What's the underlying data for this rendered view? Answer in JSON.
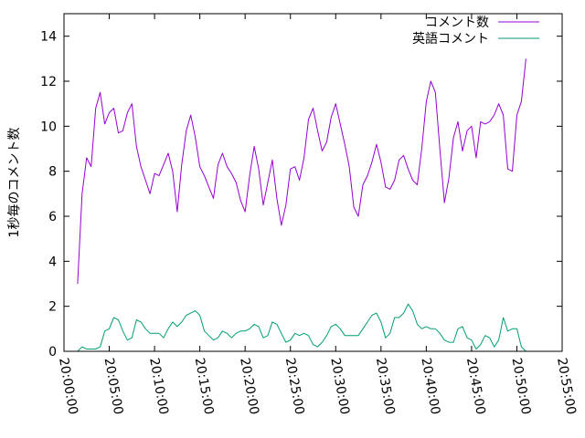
{
  "chart_data": {
    "type": "line",
    "title": "",
    "xlabel": "",
    "ylabel": "1秒毎のコメント数",
    "xlim": [
      "20:00:00",
      "20:55:00"
    ],
    "ylim": [
      0,
      15
    ],
    "x_ticks": [
      "20:00:00",
      "20:05:00",
      "20:10:00",
      "20:15:00",
      "20:20:00",
      "20:25:00",
      "20:30:00",
      "20:35:00",
      "20:40:00",
      "20:45:00",
      "20:50:00",
      "20:55:00"
    ],
    "y_ticks": [
      0,
      2,
      4,
      6,
      8,
      10,
      12,
      14
    ],
    "grid": false,
    "legend_position": "top-right",
    "series": [
      {
        "name": "コメント数",
        "color": "#9400d3",
        "points": [
          [
            "20:01:30",
            3.0
          ],
          [
            "20:02:00",
            7.0
          ],
          [
            "20:02:30",
            8.6
          ],
          [
            "20:03:00",
            8.2
          ],
          [
            "20:03:30",
            10.8
          ],
          [
            "20:04:00",
            11.5
          ],
          [
            "20:04:30",
            10.1
          ],
          [
            "20:05:00",
            10.6
          ],
          [
            "20:05:30",
            10.8
          ],
          [
            "20:06:00",
            9.7
          ],
          [
            "20:06:30",
            9.8
          ],
          [
            "20:07:00",
            10.6
          ],
          [
            "20:07:30",
            11.0
          ],
          [
            "20:08:00",
            9.1
          ],
          [
            "20:08:30",
            8.2
          ],
          [
            "20:09:00",
            7.6
          ],
          [
            "20:09:30",
            7.0
          ],
          [
            "20:10:00",
            7.9
          ],
          [
            "20:10:30",
            7.8
          ],
          [
            "20:11:00",
            8.3
          ],
          [
            "20:11:30",
            8.8
          ],
          [
            "20:12:00",
            8.0
          ],
          [
            "20:12:30",
            6.2
          ],
          [
            "20:13:00",
            8.3
          ],
          [
            "20:13:30",
            9.8
          ],
          [
            "20:14:00",
            10.5
          ],
          [
            "20:14:30",
            9.5
          ],
          [
            "20:15:00",
            8.2
          ],
          [
            "20:15:30",
            7.8
          ],
          [
            "20:16:00",
            7.3
          ],
          [
            "20:16:30",
            6.8
          ],
          [
            "20:17:00",
            8.3
          ],
          [
            "20:17:30",
            8.8
          ],
          [
            "20:18:00",
            8.2
          ],
          [
            "20:18:30",
            7.9
          ],
          [
            "20:19:00",
            7.5
          ],
          [
            "20:19:30",
            6.7
          ],
          [
            "20:20:00",
            6.2
          ],
          [
            "20:20:30",
            7.8
          ],
          [
            "20:21:00",
            9.1
          ],
          [
            "20:21:30",
            8.1
          ],
          [
            "20:22:00",
            6.5
          ],
          [
            "20:22:30",
            7.5
          ],
          [
            "20:23:00",
            8.5
          ],
          [
            "20:23:30",
            6.8
          ],
          [
            "20:24:00",
            5.6
          ],
          [
            "20:24:30",
            6.5
          ],
          [
            "20:25:00",
            8.1
          ],
          [
            "20:25:30",
            8.2
          ],
          [
            "20:26:00",
            7.6
          ],
          [
            "20:26:30",
            8.6
          ],
          [
            "20:27:00",
            10.3
          ],
          [
            "20:27:30",
            10.8
          ],
          [
            "20:28:00",
            9.8
          ],
          [
            "20:28:30",
            8.9
          ],
          [
            "20:29:00",
            9.3
          ],
          [
            "20:29:30",
            10.4
          ],
          [
            "20:30:00",
            11.0
          ],
          [
            "20:30:30",
            10.1
          ],
          [
            "20:31:00",
            9.2
          ],
          [
            "20:31:30",
            8.2
          ],
          [
            "20:32:00",
            6.4
          ],
          [
            "20:32:30",
            6.0
          ],
          [
            "20:33:00",
            7.4
          ],
          [
            "20:33:30",
            7.8
          ],
          [
            "20:34:00",
            8.4
          ],
          [
            "20:34:30",
            9.2
          ],
          [
            "20:35:00",
            8.4
          ],
          [
            "20:35:30",
            7.3
          ],
          [
            "20:36:00",
            7.2
          ],
          [
            "20:36:30",
            7.6
          ],
          [
            "20:37:00",
            8.5
          ],
          [
            "20:37:30",
            8.7
          ],
          [
            "20:38:00",
            8.1
          ],
          [
            "20:38:30",
            7.6
          ],
          [
            "20:39:00",
            7.4
          ],
          [
            "20:39:30",
            9.0
          ],
          [
            "20:40:00",
            11.1
          ],
          [
            "20:40:30",
            12.0
          ],
          [
            "20:41:00",
            11.5
          ],
          [
            "20:41:30",
            9.0
          ],
          [
            "20:42:00",
            6.6
          ],
          [
            "20:42:30",
            7.7
          ],
          [
            "20:43:00",
            9.5
          ],
          [
            "20:43:30",
            10.2
          ],
          [
            "20:44:00",
            8.9
          ],
          [
            "20:44:30",
            9.8
          ],
          [
            "20:45:00",
            10.0
          ],
          [
            "20:45:30",
            8.6
          ],
          [
            "20:46:00",
            10.2
          ],
          [
            "20:46:30",
            10.1
          ],
          [
            "20:47:00",
            10.2
          ],
          [
            "20:47:30",
            10.5
          ],
          [
            "20:48:00",
            11.0
          ],
          [
            "20:48:30",
            10.5
          ],
          [
            "20:49:00",
            8.1
          ],
          [
            "20:49:30",
            8.0
          ],
          [
            "20:50:00",
            10.5
          ],
          [
            "20:50:30",
            11.1
          ],
          [
            "20:51:00",
            13.0
          ]
        ]
      },
      {
        "name": "英語コメント",
        "color": "#009e73",
        "points": [
          [
            "20:01:30",
            0.0
          ],
          [
            "20:02:00",
            0.2
          ],
          [
            "20:02:30",
            0.1
          ],
          [
            "20:03:00",
            0.1
          ],
          [
            "20:03:30",
            0.1
          ],
          [
            "20:04:00",
            0.2
          ],
          [
            "20:04:30",
            0.9
          ],
          [
            "20:05:00",
            1.0
          ],
          [
            "20:05:30",
            1.5
          ],
          [
            "20:06:00",
            1.4
          ],
          [
            "20:06:30",
            0.9
          ],
          [
            "20:07:00",
            0.5
          ],
          [
            "20:07:30",
            0.6
          ],
          [
            "20:08:00",
            1.4
          ],
          [
            "20:08:30",
            1.3
          ],
          [
            "20:09:00",
            1.0
          ],
          [
            "20:09:30",
            0.8
          ],
          [
            "20:10:00",
            0.8
          ],
          [
            "20:10:30",
            0.8
          ],
          [
            "20:11:00",
            0.6
          ],
          [
            "20:11:30",
            1.0
          ],
          [
            "20:12:00",
            1.3
          ],
          [
            "20:12:30",
            1.1
          ],
          [
            "20:13:00",
            1.3
          ],
          [
            "20:13:30",
            1.6
          ],
          [
            "20:14:00",
            1.7
          ],
          [
            "20:14:30",
            1.8
          ],
          [
            "20:15:00",
            1.6
          ],
          [
            "20:15:30",
            0.9
          ],
          [
            "20:16:00",
            0.7
          ],
          [
            "20:16:30",
            0.5
          ],
          [
            "20:17:00",
            0.6
          ],
          [
            "20:17:30",
            0.9
          ],
          [
            "20:18:00",
            0.8
          ],
          [
            "20:18:30",
            0.6
          ],
          [
            "20:19:00",
            0.8
          ],
          [
            "20:19:30",
            0.9
          ],
          [
            "20:20:00",
            0.9
          ],
          [
            "20:20:30",
            1.0
          ],
          [
            "20:21:00",
            1.2
          ],
          [
            "20:21:30",
            1.1
          ],
          [
            "20:22:00",
            0.6
          ],
          [
            "20:22:30",
            0.7
          ],
          [
            "20:23:00",
            1.3
          ],
          [
            "20:23:30",
            1.2
          ],
          [
            "20:24:00",
            0.8
          ],
          [
            "20:24:30",
            0.4
          ],
          [
            "20:25:00",
            0.5
          ],
          [
            "20:25:30",
            0.8
          ],
          [
            "20:26:00",
            0.7
          ],
          [
            "20:26:30",
            0.8
          ],
          [
            "20:27:00",
            0.7
          ],
          [
            "20:27:30",
            0.3
          ],
          [
            "20:28:00",
            0.2
          ],
          [
            "20:28:30",
            0.4
          ],
          [
            "20:29:00",
            0.7
          ],
          [
            "20:29:30",
            1.1
          ],
          [
            "20:30:00",
            1.2
          ],
          [
            "20:30:30",
            1.0
          ],
          [
            "20:31:00",
            0.7
          ],
          [
            "20:31:30",
            0.7
          ],
          [
            "20:32:00",
            0.7
          ],
          [
            "20:32:30",
            0.7
          ],
          [
            "20:33:00",
            1.0
          ],
          [
            "20:33:30",
            1.3
          ],
          [
            "20:34:00",
            1.6
          ],
          [
            "20:34:30",
            1.7
          ],
          [
            "20:35:00",
            1.3
          ],
          [
            "20:35:30",
            0.6
          ],
          [
            "20:36:00",
            0.8
          ],
          [
            "20:36:30",
            1.5
          ],
          [
            "20:37:00",
            1.5
          ],
          [
            "20:37:30",
            1.7
          ],
          [
            "20:38:00",
            2.1
          ],
          [
            "20:38:30",
            1.8
          ],
          [
            "20:39:00",
            1.2
          ],
          [
            "20:39:30",
            1.0
          ],
          [
            "20:40:00",
            1.1
          ],
          [
            "20:40:30",
            1.0
          ],
          [
            "20:41:00",
            1.0
          ],
          [
            "20:41:30",
            0.8
          ],
          [
            "20:42:00",
            0.5
          ],
          [
            "20:42:30",
            0.4
          ],
          [
            "20:43:00",
            0.4
          ],
          [
            "20:43:30",
            1.0
          ],
          [
            "20:44:00",
            1.1
          ],
          [
            "20:44:30",
            0.6
          ],
          [
            "20:45:00",
            0.5
          ],
          [
            "20:45:30",
            0.1
          ],
          [
            "20:46:00",
            0.3
          ],
          [
            "20:46:30",
            0.7
          ],
          [
            "20:47:00",
            0.6
          ],
          [
            "20:47:30",
            0.2
          ],
          [
            "20:48:00",
            0.5
          ],
          [
            "20:48:30",
            1.5
          ],
          [
            "20:49:00",
            0.9
          ],
          [
            "20:49:30",
            1.0
          ],
          [
            "20:50:00",
            1.0
          ],
          [
            "20:50:30",
            0.2
          ],
          [
            "20:51:00",
            0.0
          ]
        ]
      }
    ]
  }
}
